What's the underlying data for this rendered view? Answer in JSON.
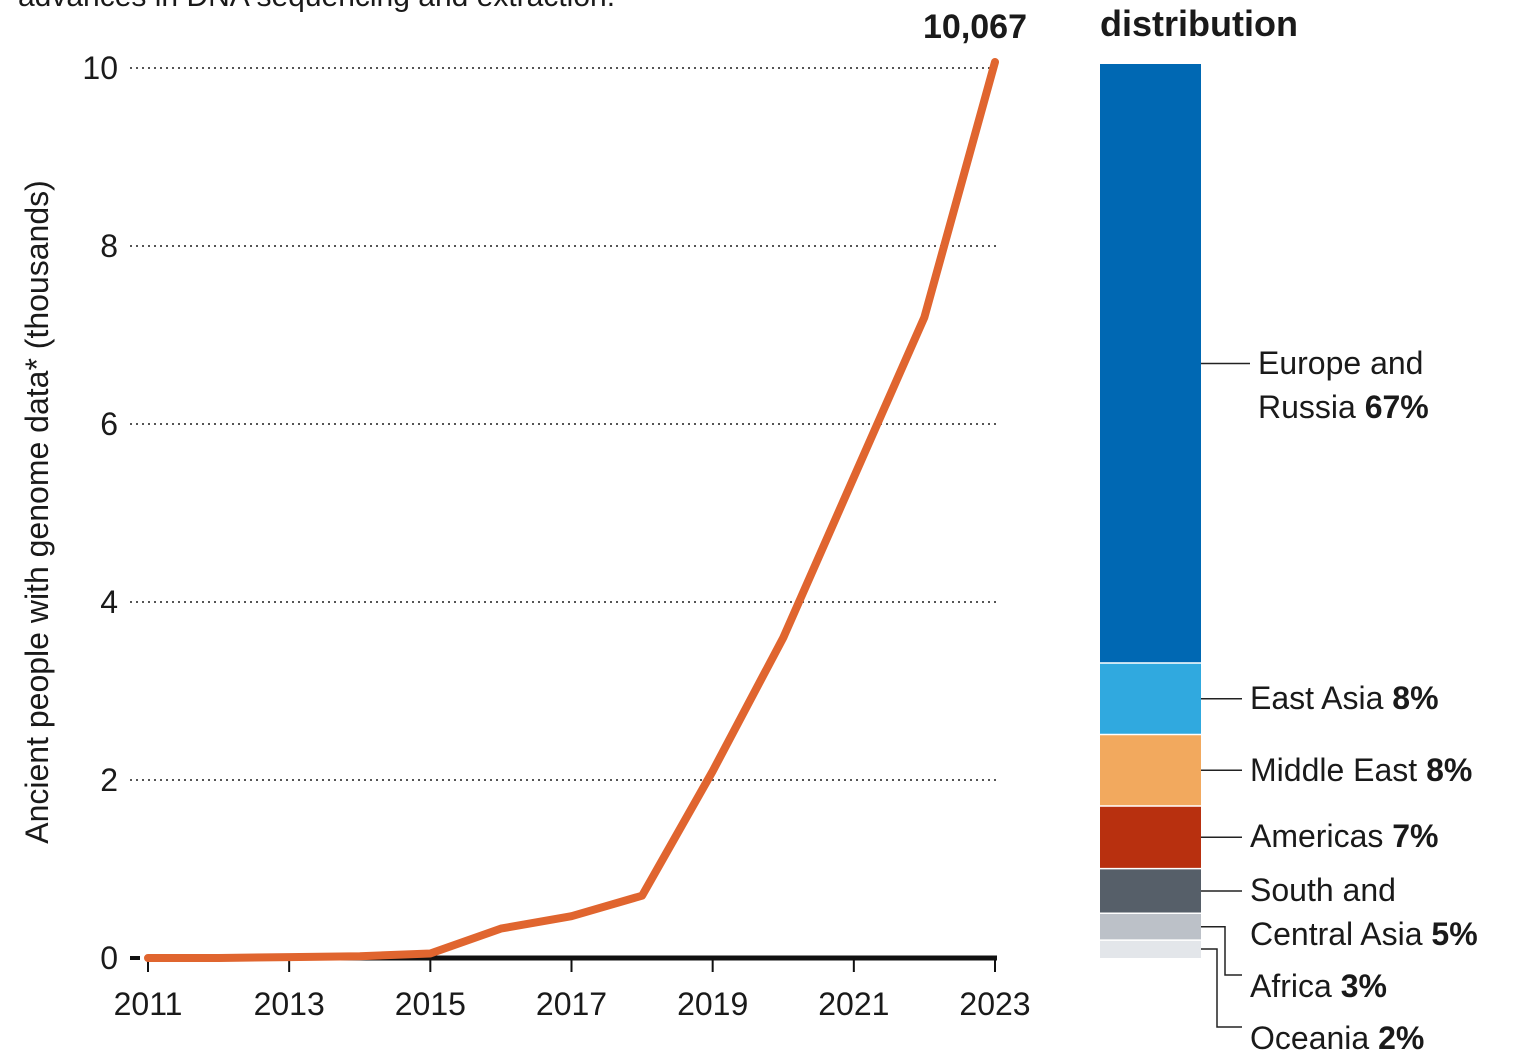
{
  "subtitle_fragment": "advances in DNA sequencing and extraction.",
  "chart_data": [
    {
      "type": "line",
      "ylabel": "Ancient people with genome data* (thousands)",
      "x": [
        2011,
        2012,
        2013,
        2014,
        2015,
        2016,
        2017,
        2018,
        2019,
        2020,
        2021,
        2022,
        2023
      ],
      "xticks": [
        "2011",
        "2013",
        "2015",
        "2017",
        "2019",
        "2021",
        "2023"
      ],
      "yticks": [
        "0",
        "2",
        "4",
        "6",
        "8",
        "10"
      ],
      "ylim": [
        0,
        10
      ],
      "xlim": [
        2011,
        2023
      ],
      "series": [
        {
          "values": [
            0.0,
            0.0,
            0.01,
            0.02,
            0.05,
            0.33,
            0.47,
            0.7,
            2.1,
            3.6,
            5.4,
            7.2,
            10.067
          ],
          "color": "#e0652f"
        }
      ],
      "end_label": "10,067",
      "grid": "horizontal dotted"
    },
    {
      "type": "bar",
      "title": "distribution",
      "stacked": true,
      "segments": [
        {
          "name": "Europe and",
          "name2": "Russia",
          "pct": "67%",
          "value": 67,
          "color": "#0068b3"
        },
        {
          "name": "East Asia",
          "pct": "8%",
          "value": 8,
          "color": "#30a9df"
        },
        {
          "name": "Middle East",
          "pct": "8%",
          "value": 8,
          "color": "#f2a95e"
        },
        {
          "name": "Americas",
          "pct": "7%",
          "value": 7,
          "color": "#b8300f"
        },
        {
          "name": "South and",
          "name2": "Central Asia",
          "pct": "5%",
          "value": 5,
          "color": "#565f69"
        },
        {
          "name": "Africa",
          "pct": "3%",
          "value": 3,
          "color": "#bcc1c8"
        },
        {
          "name": "Oceania",
          "pct": "2%",
          "value": 2,
          "color": "#e3e6ea"
        }
      ]
    }
  ]
}
